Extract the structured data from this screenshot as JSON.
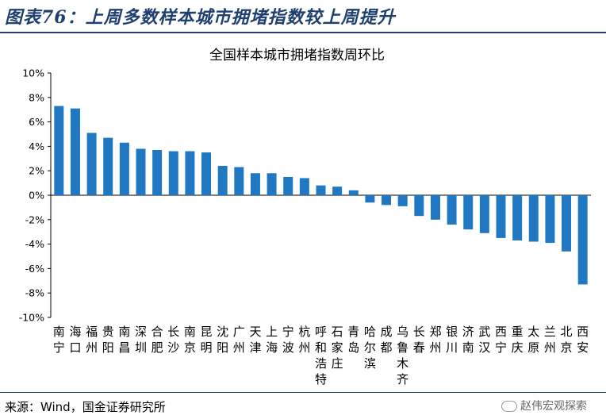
{
  "figure": {
    "title": "图表76：上周多数样本城市拥堵指数较上周提升",
    "source": "来源：Wind，国金证券研究所",
    "watermark": "赵伟宏观探索"
  },
  "colors": {
    "bar": "#1f78c1",
    "title": "#1f3f6f"
  },
  "chart_data": {
    "type": "bar",
    "title": "全国样本城市拥堵指数周环比",
    "xlabel": "",
    "ylabel": "",
    "ylim": [
      -10,
      10
    ],
    "yticks": [
      "10%",
      "8%",
      "6%",
      "4%",
      "2%",
      "0%",
      "-2%",
      "-4%",
      "-6%",
      "-8%",
      "-10%"
    ],
    "grid": false,
    "unit": "%",
    "categories": [
      "南宁",
      "海口",
      "福州",
      "贵阳",
      "南昌",
      "深圳",
      "合肥",
      "长沙",
      "南京",
      "昆明",
      "沈阳",
      "广州",
      "天津",
      "上海",
      "宁波",
      "杭州",
      "呼和浩特",
      "石家庄",
      "青岛",
      "哈尔滨",
      "成都",
      "乌鲁木齐",
      "长春",
      "郑州",
      "银川",
      "济南",
      "武汉",
      "西宁",
      "重庆",
      "太原",
      "兰州",
      "北京",
      "西安"
    ],
    "values": [
      7.3,
      7.1,
      5.1,
      4.7,
      4.3,
      3.8,
      3.7,
      3.6,
      3.6,
      3.5,
      2.4,
      2.3,
      1.8,
      1.8,
      1.5,
      1.4,
      0.8,
      0.7,
      0.4,
      -0.6,
      -0.8,
      -0.9,
      -1.7,
      -2.0,
      -2.4,
      -2.8,
      -3.1,
      -3.5,
      -3.7,
      -3.8,
      -3.9,
      -4.6,
      -7.3
    ]
  }
}
